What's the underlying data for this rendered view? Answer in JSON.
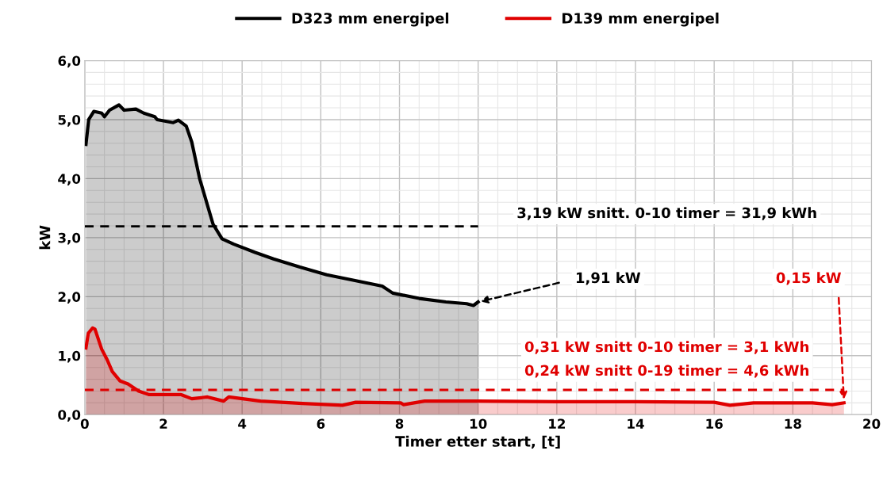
{
  "chart_data": {
    "type": "area",
    "xlabel": "Timer etter start, [t]",
    "ylabel": "kW",
    "xlim": [
      0,
      20
    ],
    "ylim": [
      0,
      6
    ],
    "xticks": [
      0,
      2,
      4,
      6,
      8,
      10,
      12,
      14,
      16,
      18,
      20
    ],
    "yticks": [
      {
        "value": 0,
        "label": "0,0"
      },
      {
        "value": 1,
        "label": "1,0"
      },
      {
        "value": 2,
        "label": "2,0"
      },
      {
        "value": 3,
        "label": "3,0"
      },
      {
        "value": 4,
        "label": "4,0"
      },
      {
        "value": 5,
        "label": "5,0"
      },
      {
        "value": 6,
        "label": "6,0"
      }
    ],
    "grid": true,
    "legend": "top",
    "series": [
      {
        "name": "D323 mm energipel",
        "color": "#000000",
        "x": [
          0.03,
          0.1,
          0.23,
          0.43,
          0.5,
          0.63,
          0.87,
          1.0,
          1.3,
          1.5,
          1.78,
          1.84,
          2.25,
          2.38,
          2.58,
          2.72,
          2.92,
          3.26,
          3.49,
          3.79,
          4.33,
          4.8,
          5.47,
          6.15,
          6.82,
          7.56,
          7.83,
          8.5,
          9.18,
          9.71,
          9.88,
          10.0
        ],
        "values": [
          4.58,
          5.0,
          5.14,
          5.11,
          5.05,
          5.16,
          5.25,
          5.16,
          5.18,
          5.11,
          5.05,
          5.0,
          4.95,
          4.99,
          4.89,
          4.62,
          4.0,
          3.23,
          2.98,
          2.89,
          2.75,
          2.64,
          2.5,
          2.37,
          2.28,
          2.18,
          2.06,
          1.97,
          1.91,
          1.88,
          1.85,
          1.91
        ]
      },
      {
        "name": "D139 mm energipel",
        "color": "#e00000",
        "x": [
          0.03,
          0.09,
          0.2,
          0.26,
          0.43,
          0.57,
          0.7,
          0.9,
          1.1,
          1.37,
          1.64,
          2.45,
          2.72,
          3.12,
          3.53,
          3.66,
          4.47,
          5.54,
          6.55,
          6.89,
          8.03,
          8.1,
          8.64,
          10.0,
          12.0,
          14.0,
          16.0,
          16.4,
          17.0,
          18.5,
          19.0,
          19.3
        ],
        "values": [
          1.13,
          1.38,
          1.47,
          1.45,
          1.11,
          0.93,
          0.73,
          0.57,
          0.52,
          0.4,
          0.34,
          0.34,
          0.27,
          0.3,
          0.23,
          0.3,
          0.23,
          0.19,
          0.16,
          0.21,
          0.2,
          0.17,
          0.23,
          0.23,
          0.22,
          0.22,
          0.21,
          0.16,
          0.2,
          0.2,
          0.17,
          0.2
        ]
      }
    ],
    "ref_lines": [
      {
        "axis": "y",
        "value": 3.19,
        "label": "3,19 kW snitt. 0-10 timer = 31,9 kWh",
        "color": "#000000",
        "line_style": "dashed"
      },
      {
        "axis": "y",
        "value": 0.42,
        "label": "0,31 kW snitt 0-10 timer = 3,1 kWh\n0,24 kW snitt 0-19 timer = 4,6 kWh",
        "color": "#e00000",
        "line_style": "dashed"
      }
    ],
    "annotations": [
      {
        "text": "1,91 kW",
        "x": 10,
        "y": 1.91
      },
      {
        "text": "0,15 kW",
        "x": 19.3,
        "y": 0.22
      }
    ]
  }
}
